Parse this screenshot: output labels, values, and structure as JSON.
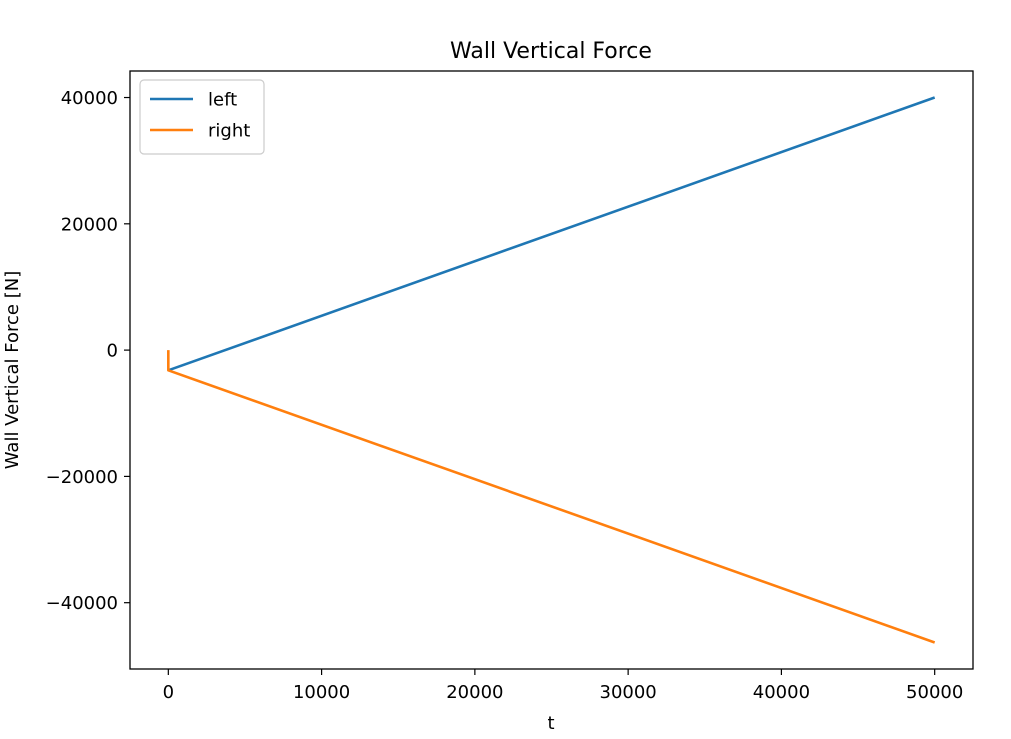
{
  "chart_data": {
    "type": "line",
    "title": "Wall Vertical Force",
    "xlabel": "t",
    "ylabel": "Wall Vertical Force [N]",
    "xlim": [
      -2500,
      52500
    ],
    "ylim": [
      -50500,
      44200
    ],
    "xticks": [
      0,
      10000,
      20000,
      30000,
      40000,
      50000
    ],
    "xtick_labels": [
      "0",
      "10000",
      "20000",
      "30000",
      "40000",
      "50000"
    ],
    "yticks": [
      -40000,
      -20000,
      0,
      20000,
      40000
    ],
    "ytick_labels": [
      "−40000",
      "−20000",
      "0",
      "20000",
      "40000"
    ],
    "grid": false,
    "legend_position": "upper-left",
    "series": [
      {
        "name": "left",
        "color": "#1f77b4",
        "x": [
          0,
          50000
        ],
        "y": [
          -3200,
          40000
        ]
      },
      {
        "name": "right",
        "color": "#ff7f0e",
        "x": [
          0,
          0,
          50000
        ],
        "y": [
          0,
          -3200,
          -46300
        ]
      }
    ]
  }
}
